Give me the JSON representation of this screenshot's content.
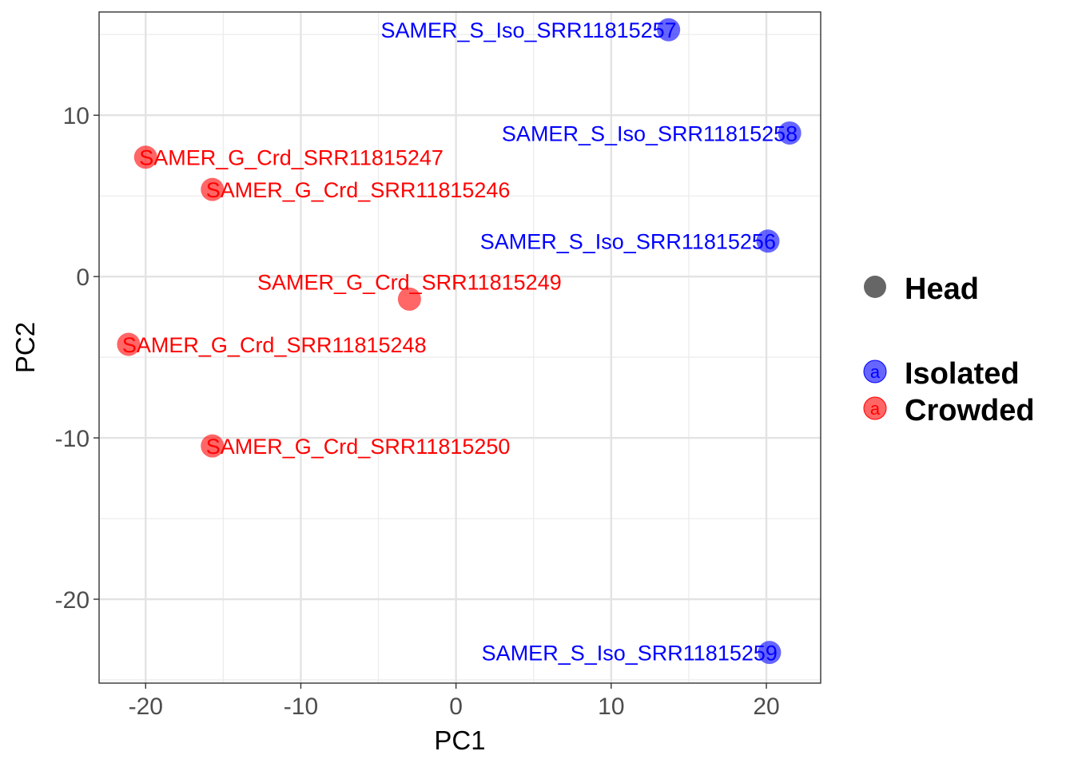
{
  "chart_data": {
    "type": "scatter",
    "title": "",
    "xlabel": "PC1",
    "ylabel": "PC2",
    "xlim": [
      -23.0,
      23.5
    ],
    "ylim": [
      -25.2,
      16.4
    ],
    "x_ticks": [
      -20,
      -10,
      0,
      10,
      20
    ],
    "y_ticks": [
      -20,
      -10,
      0,
      10
    ],
    "x_tick_labels": [
      "-20",
      "-10",
      "0",
      "10",
      "20"
    ],
    "y_tick_labels": [
      "-20",
      "-10",
      "0",
      "10"
    ],
    "grid": true,
    "legend_position": "right",
    "legend": {
      "shape_group": {
        "label": "Head",
        "color": "#666666"
      },
      "color_groups": [
        {
          "label": "Isolated",
          "color": "#0000ff",
          "glyph": "a"
        },
        {
          "label": "Crowded",
          "color": "#ff0000",
          "glyph": "a"
        }
      ]
    },
    "colors": {
      "Isolated": "#0000ff",
      "Crowded": "#ff0000"
    },
    "series": [
      {
        "group": "Isolated",
        "points": [
          {
            "x": 13.7,
            "y": 15.3,
            "label": "SAMER_S_Iso_SRR11815257",
            "anchor": "end"
          },
          {
            "x": 21.5,
            "y": 8.9,
            "label": "SAMER_S_Iso_SRR11815258",
            "anchor": "end"
          },
          {
            "x": 20.1,
            "y": 2.2,
            "label": "SAMER_S_Iso_SRR11815256",
            "anchor": "end"
          },
          {
            "x": 20.2,
            "y": -23.3,
            "label": "SAMER_S_Iso_SRR11815259",
            "anchor": "end"
          }
        ]
      },
      {
        "group": "Crowded",
        "points": [
          {
            "x": -20.0,
            "y": 7.4,
            "label": "SAMER_G_Crd_SRR11815247",
            "anchor": "start"
          },
          {
            "x": -15.7,
            "y": 5.4,
            "label": "SAMER_G_Crd_SRR11815246",
            "anchor": "start"
          },
          {
            "x": -3.0,
            "y": -1.4,
            "label": "SAMER_G_Crd_SRR11815249",
            "anchor": "middle"
          },
          {
            "x": -21.1,
            "y": -4.2,
            "label": "SAMER_G_Crd_SRR11815248",
            "anchor": "start"
          },
          {
            "x": -15.7,
            "y": -10.5,
            "label": "SAMER_G_Crd_SRR11815250",
            "anchor": "start"
          }
        ]
      }
    ]
  }
}
